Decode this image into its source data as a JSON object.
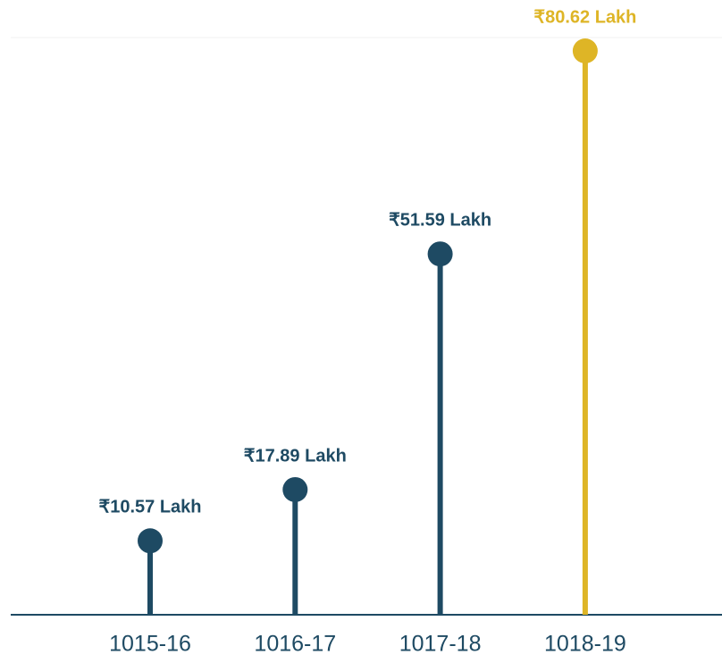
{
  "chart_data": {
    "type": "lollipop",
    "categories": [
      "1015-16",
      "1016-17",
      "1017-18",
      "1018-19"
    ],
    "values": [
      10.57,
      17.89,
      51.59,
      80.62
    ],
    "value_labels": [
      "₹10.57 Lakh",
      "₹17.89 Lakh",
      "₹51.59 Lakh",
      "₹80.62 Lakh"
    ],
    "colors": [
      "#1e4a63",
      "#1e4a63",
      "#1e4a63",
      "#deb526"
    ]
  }
}
